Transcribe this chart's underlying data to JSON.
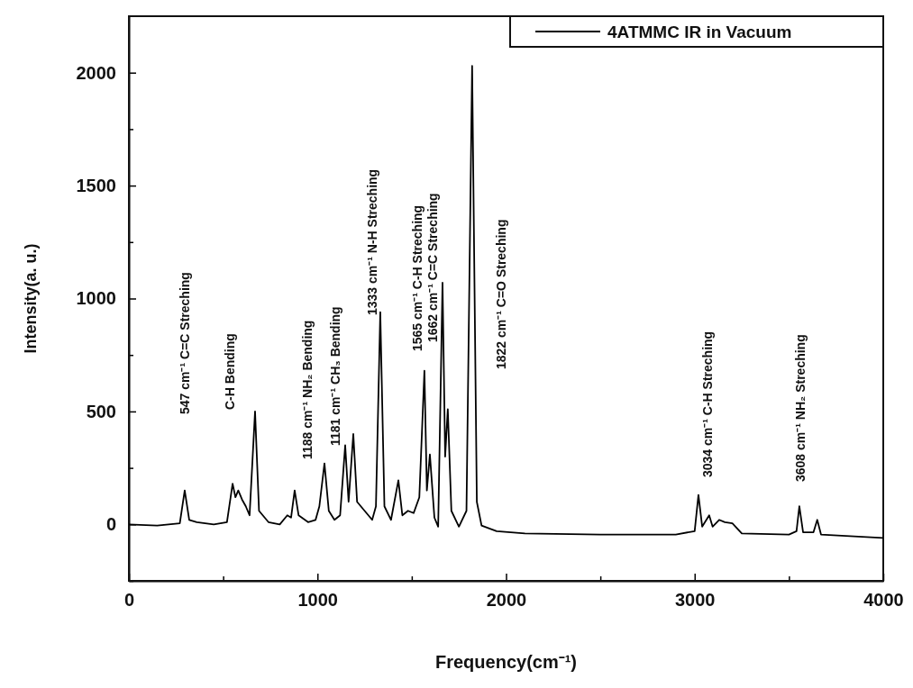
{
  "chart_data": {
    "type": "line",
    "xlabel": "Frequency(cm⁻¹)",
    "ylabel": "Intensity(a. u.)",
    "xlim": [
      0,
      4000
    ],
    "ylim": [
      -250,
      2250
    ],
    "xticks": [
      0,
      {
        "value": 500,
        "label": null
      },
      1000,
      {
        "value": 1500,
        "label": null
      },
      2000,
      {
        "value": 2500,
        "label": null
      },
      3000,
      {
        "value": 3500,
        "label": null
      },
      4000
    ],
    "yticks": [
      {
        "value": -250,
        "label": null
      },
      0,
      {
        "value": 250,
        "label": null
      },
      500,
      {
        "value": 750,
        "label": null
      },
      1000,
      {
        "value": 1250,
        "label": null
      },
      1500,
      {
        "value": 1750,
        "label": null
      },
      2000
    ],
    "grid": false,
    "legend": "top right",
    "marker": "none",
    "line_style": "solid",
    "series": [
      {
        "name": "4ATMMC IR in Vacuum",
        "color": "#000000",
        "x": [
          0,
          150,
          270,
          296,
          320,
          360,
          450,
          520,
          550,
          565,
          580,
          600,
          620,
          640,
          669,
          690,
          740,
          800,
          840,
          860,
          879,
          900,
          950,
          990,
          1010,
          1037,
          1060,
          1090,
          1120,
          1147,
          1165,
          1190,
          1210,
          1250,
          1290,
          1310,
          1333,
          1355,
          1390,
          1429,
          1450,
          1480,
          1510,
          1540,
          1567,
          1580,
          1596,
          1620,
          1640,
          1663,
          1677,
          1691,
          1710,
          1750,
          1790,
          1820,
          1845,
          1870,
          1950,
          2100,
          2500,
          2900,
          3000,
          3020,
          3040,
          3077,
          3095,
          3130,
          3160,
          3200,
          3250,
          3500,
          3540,
          3555,
          3575,
          3630,
          3650,
          3670,
          4000
        ],
        "values": [
          0,
          -5,
          5,
          150,
          20,
          10,
          0,
          10,
          180,
          120,
          150,
          110,
          80,
          40,
          500,
          60,
          10,
          0,
          40,
          30,
          150,
          40,
          10,
          20,
          80,
          270,
          60,
          20,
          40,
          350,
          100,
          400,
          100,
          60,
          20,
          80,
          940,
          80,
          20,
          195,
          40,
          60,
          50,
          120,
          680,
          150,
          310,
          30,
          -10,
          1070,
          300,
          510,
          60,
          -10,
          60,
          2030,
          100,
          -5,
          -30,
          -40,
          -45,
          -45,
          -30,
          130,
          -10,
          40,
          -10,
          20,
          10,
          5,
          -40,
          -45,
          -30,
          80,
          -35,
          -35,
          20,
          -45,
          -60
        ]
      }
    ],
    "annotations": [
      "547 cm⁻¹ C=C Streching",
      "C-H Bending",
      "1188 cm⁻¹ NH₂ Bending",
      "1181 cm⁻¹ CH₃ Bending",
      "1333 cm⁻¹ N-H Streching",
      "1565 cm⁻¹ C-H Streching",
      "1662 cm⁻¹ C=C Streching",
      "1822 cm⁻¹ C=O Streching",
      "3034 cm⁻¹ C-H Streching",
      "3608 cm⁻¹ NH₂ Streching"
    ]
  }
}
